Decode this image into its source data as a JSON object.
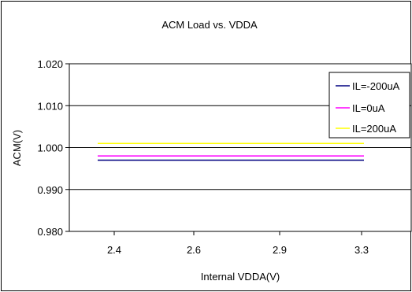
{
  "chart_data": {
    "type": "line",
    "title": "ACM Load vs. VDDA",
    "xlabel": "Internal VDDA(V)",
    "ylabel": "ACM(V)",
    "categories": [
      "2.4",
      "2.6",
      "2.9",
      "3.3"
    ],
    "ylim": [
      0.98,
      1.02
    ],
    "yticks": [
      "0.980",
      "0.990",
      "1.000",
      "1.010",
      "1.020"
    ],
    "grid": "horizontal",
    "legend_position": "top-right",
    "series": [
      {
        "name": "IL=-200uA",
        "color": "#000080",
        "values": [
          0.997,
          0.997,
          0.997,
          0.997
        ]
      },
      {
        "name": "IL=0uA",
        "color": "#ff00ff",
        "values": [
          0.998,
          0.998,
          0.998,
          0.998
        ]
      },
      {
        "name": "IL=200uA",
        "color": "#ffff00",
        "values": [
          1.001,
          1.001,
          1.001,
          1.001
        ]
      }
    ]
  }
}
